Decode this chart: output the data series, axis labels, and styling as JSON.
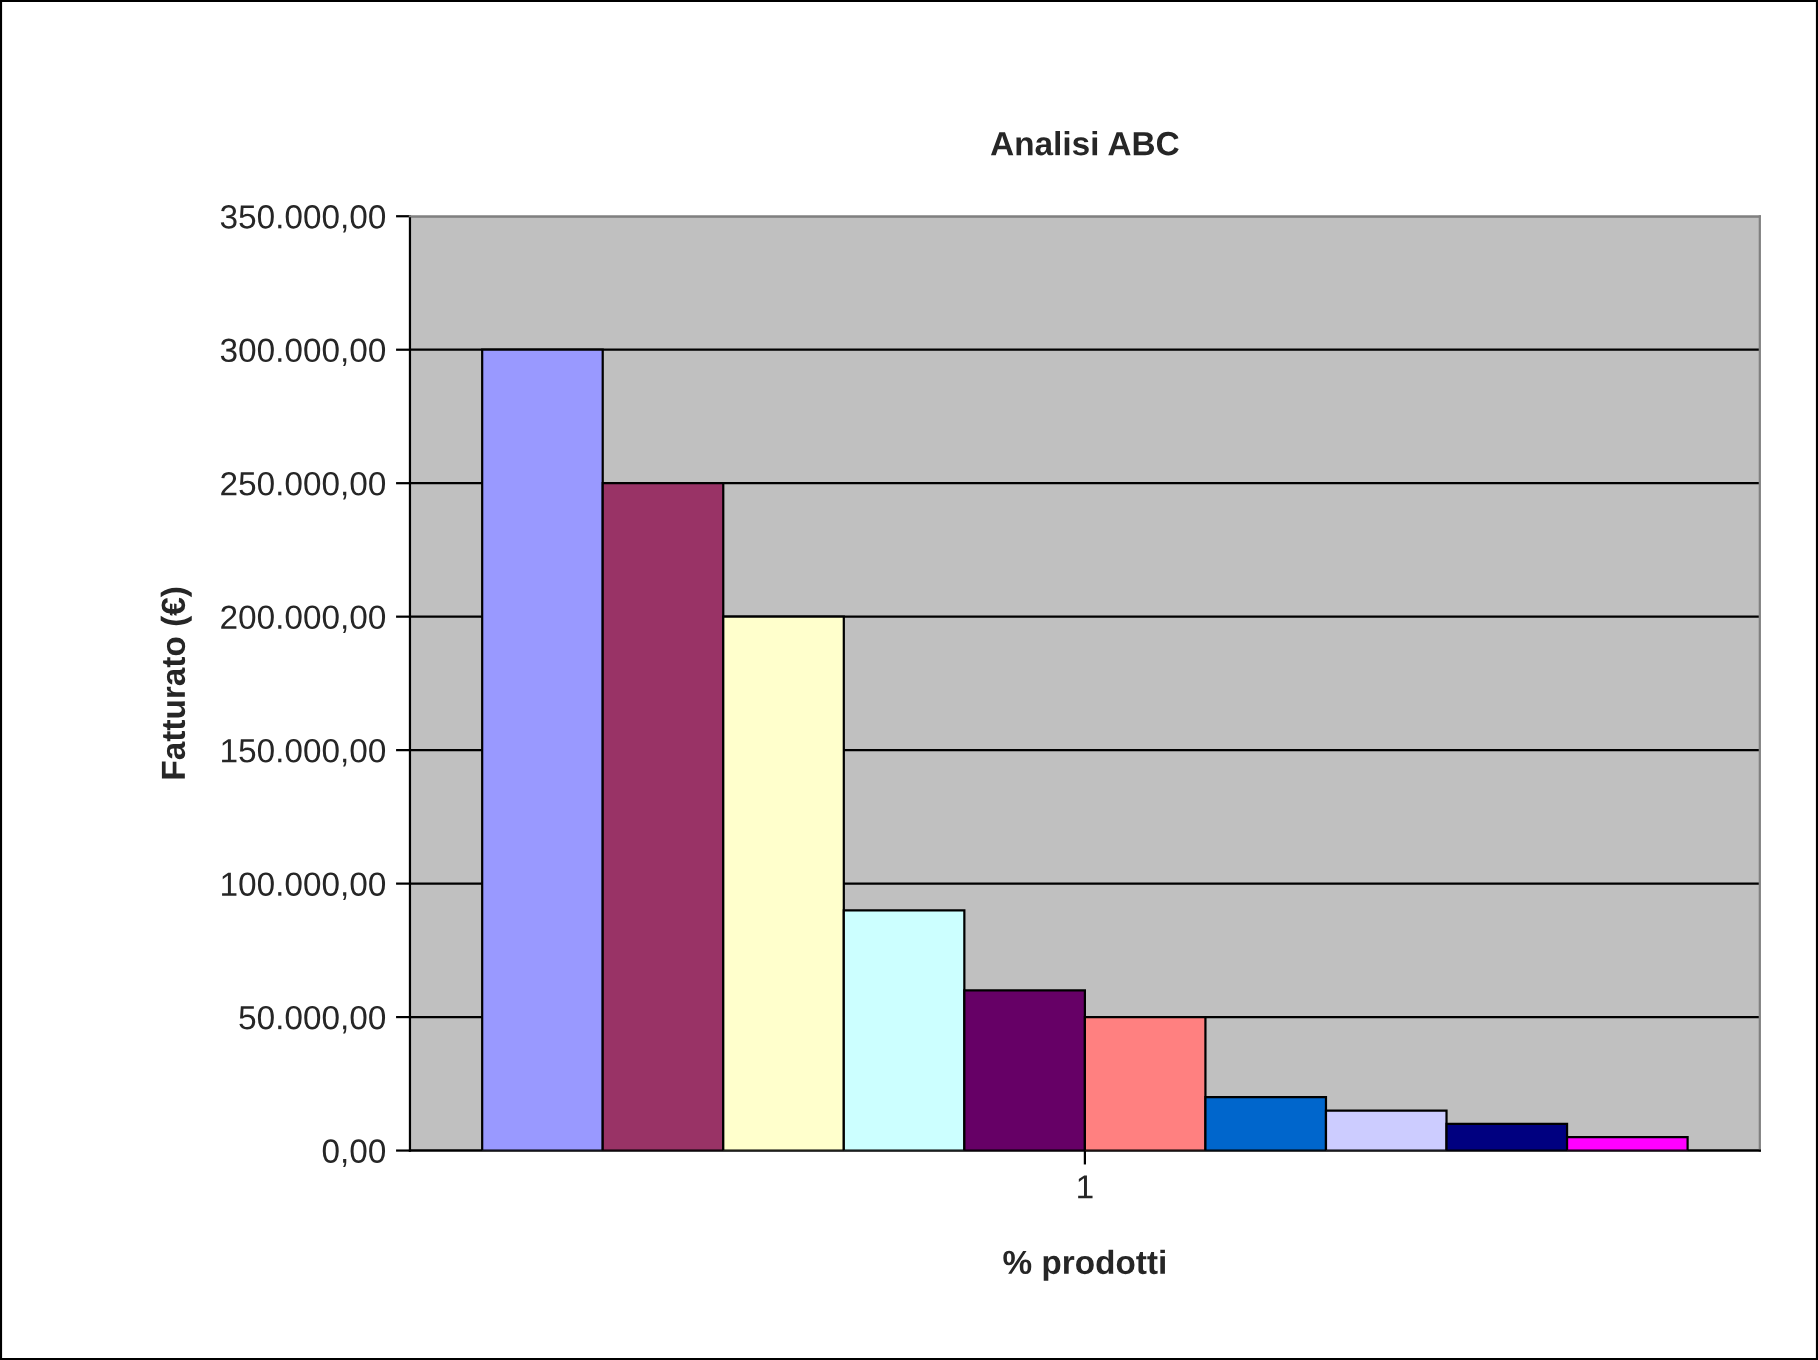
{
  "chart_data": {
    "type": "bar",
    "title": "Analisi ABC",
    "xlabel": "% prodotti",
    "ylabel": "Fatturato (€)",
    "categories": [
      "1"
    ],
    "series": [
      {
        "color": "#9999ff",
        "values": [
          300000
        ]
      },
      {
        "color": "#993366",
        "values": [
          250000
        ]
      },
      {
        "color": "#ffffcc",
        "values": [
          200000
        ]
      },
      {
        "color": "#ccffff",
        "values": [
          90000
        ]
      },
      {
        "color": "#660066",
        "values": [
          60000
        ]
      },
      {
        "color": "#ff8080",
        "values": [
          50000
        ]
      },
      {
        "color": "#0066cc",
        "values": [
          20000
        ]
      },
      {
        "color": "#ccccff",
        "values": [
          15000
        ]
      },
      {
        "color": "#000080",
        "values": [
          10000
        ]
      },
      {
        "color": "#ff00ff",
        "values": [
          5000
        ]
      }
    ],
    "ylim": [
      0,
      350000
    ],
    "yticks": [
      {
        "value": 0,
        "label": "0,00"
      },
      {
        "value": 50000,
        "label": "50.000,00"
      },
      {
        "value": 100000,
        "label": "100.000,00"
      },
      {
        "value": 150000,
        "label": "150.000,00"
      },
      {
        "value": 200000,
        "label": "200.000,00"
      },
      {
        "value": 250000,
        "label": "250.000,00"
      },
      {
        "value": 300000,
        "label": "300.000,00"
      },
      {
        "value": 350000,
        "label": "350.000,00"
      }
    ],
    "grid": "y",
    "legend": false
  }
}
